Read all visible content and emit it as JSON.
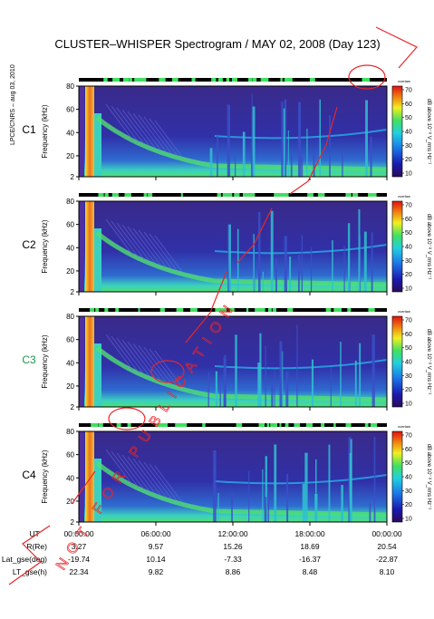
{
  "title": "CLUSTER–WHISPER Spectrogram / MAY 02, 2008 (Day 123)",
  "side_label": "LPCE/CNRS – aug 03, 2010",
  "watermark": "NOT FOR PUBLICATION",
  "colors": {
    "background": "#ffffff",
    "spectrogram_base": "#3a2d9a",
    "strike_red": "#e8262a"
  },
  "colorbar": {
    "label": "dB above 10⁻⁸ V_rms Hz⁻¹",
    "top_label": "overlaw",
    "ticks": [
      "70",
      "60",
      "50",
      "40",
      "30",
      "20",
      "10"
    ]
  },
  "panels": [
    {
      "id": "C1",
      "label": "C1",
      "label_color": "#000000"
    },
    {
      "id": "C2",
      "label": "C2",
      "label_color": "#000000"
    },
    {
      "id": "C3",
      "label": "C3",
      "label_color": "#1a9a4a"
    },
    {
      "id": "C4",
      "label": "C4",
      "label_color": "#000000"
    }
  ],
  "y_axis": {
    "label": "Frequency (kHz)",
    "ticks": [
      "80",
      "60",
      "40",
      "20",
      "2"
    ]
  },
  "ephemeris": {
    "rows": [
      {
        "label": "UT",
        "values": [
          "00:00:00",
          "06:00:00",
          "12:00:00",
          "18:00:00",
          "00:00:00"
        ]
      },
      {
        "label": "R(Re)",
        "values": [
          "3.27",
          "9.57",
          "15.26",
          "18.69",
          "20.54"
        ]
      },
      {
        "label": "Lat_gse(deg)",
        "values": [
          "-19.74",
          "10.14",
          "-7.33",
          "-16.37",
          "-22.87"
        ]
      },
      {
        "label": "LT_gse(h)",
        "values": [
          "22.34",
          "9.82",
          "8.86",
          "8.48",
          "8.10"
        ]
      }
    ]
  },
  "chart_data": {
    "type": "heatmap",
    "title": "CLUSTER–WHISPER Spectrogram / MAY 02, 2008 (Day 123)",
    "xlabel": "UT",
    "ylabel": "Frequency (kHz)",
    "x_ticks": [
      "00:00:00",
      "06:00:00",
      "12:00:00",
      "18:00:00",
      "00:00:00"
    ],
    "y_ticks": [
      80,
      60,
      40,
      20,
      2
    ],
    "ylim": [
      2,
      80
    ],
    "colorbar_range": [
      10,
      70
    ],
    "colorbar_units": "dB above 10⁻⁸ V_rms Hz⁻¹",
    "colormap": "jet",
    "series": [
      {
        "name": "C1"
      },
      {
        "name": "C2"
      },
      {
        "name": "C3"
      },
      {
        "name": "C4"
      }
    ]
  }
}
